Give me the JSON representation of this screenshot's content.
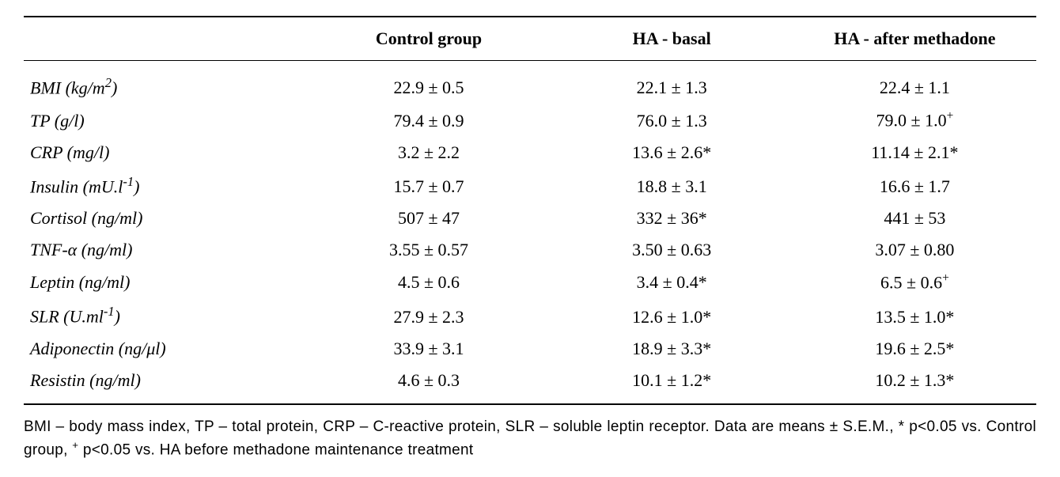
{
  "table": {
    "type": "table",
    "background_color": "#ffffff",
    "border_color": "#000000",
    "font_family_body": "Times New Roman",
    "font_family_footnote": "Arial",
    "body_fontsize_pt": 16,
    "footnote_fontsize_pt": 14,
    "columns": [
      {
        "label": "",
        "align": "left"
      },
      {
        "label": "Control group",
        "align": "center"
      },
      {
        "label": "HA - basal",
        "align": "center"
      },
      {
        "label": "HA - after methadone",
        "align": "center"
      }
    ],
    "rows": [
      {
        "label_html": "BMI (kg/m<span class='sup2'>2</span>)",
        "control": "22.9 ± 0.5",
        "basal": "22.1 ± 1.3",
        "after": "22.4 ± 1.1"
      },
      {
        "label_html": "TP (g/l)",
        "control": "79.4 ± 0.9",
        "basal": "76.0 ± 1.3",
        "after": "79.0 ± 1.0<sup>+</sup>"
      },
      {
        "label_html": "CRP (mg/l)",
        "control": "3.2 ± 2.2",
        "basal": "13.6 ± 2.6*",
        "after": "11.14 ± 2.1*"
      },
      {
        "label_html": "Insulin (mU.l<span class='supm1'>-1</span>)",
        "control": "15.7 ± 0.7",
        "basal": "18.8 ± 3.1",
        "after": "16.6 ± 1.7"
      },
      {
        "label_html": "Cortisol (ng/ml)",
        "control": "507 ± 47",
        "basal": "332 ± 36*",
        "after": "441 ± 53"
      },
      {
        "label_html": "TNF-α (ng/ml)",
        "control": "3.55 ± 0.57",
        "basal": "3.50 ± 0.63",
        "after": "3.07 ± 0.80"
      },
      {
        "label_html": "Leptin (ng/ml)",
        "control": "4.5 ± 0.6",
        "basal": "3.4 ± 0.4*",
        "after": "6.5 ± 0.6<sup>+</sup>"
      },
      {
        "label_html": "SLR (U.ml<span class='supm1'>-1</span>)",
        "control": "27.9 ± 2.3",
        "basal": "12.6 ± 1.0*",
        "after": "13.5 ± 1.0*"
      },
      {
        "label_html": "Adiponectin (ng/μl)",
        "control": "33.9 ± 3.1",
        "basal": "18.9 ± 3.3*",
        "after": "19.6 ± 2.5*"
      },
      {
        "label_html": "Resistin (ng/ml)",
        "control": "4.6 ± 0.3",
        "basal": "10.1 ± 1.2*",
        "after": "10.2 ± 1.3*"
      }
    ]
  },
  "footnote_html": "BMI – body mass index, TP – total protein, CRP – C-reactive protein, SLR – soluble leptin receptor. Data are means ± S.E.M., * p&lt;0.05 vs. Control group, <sup>+</sup> p&lt;0.05 vs. HA before methadone maintenance treatment"
}
